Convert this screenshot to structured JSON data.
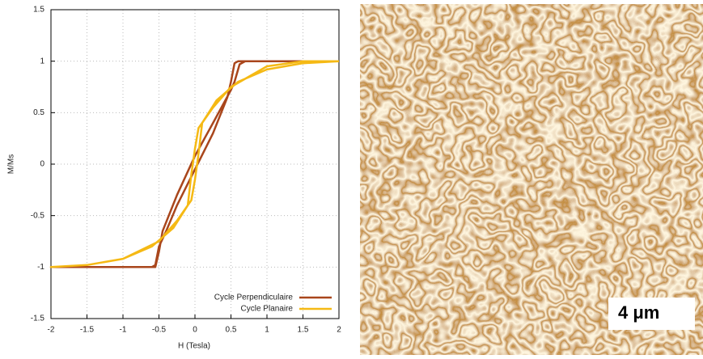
{
  "chart_data": {
    "type": "line",
    "xlabel": "H (Tesla)",
    "ylabel": "M/Ms",
    "xlim": [
      -2,
      2
    ],
    "ylim": [
      -1.5,
      1.5
    ],
    "xticks": [
      -2,
      -1.5,
      -1,
      -0.5,
      0,
      0.5,
      1,
      1.5,
      2
    ],
    "yticks": [
      1.5,
      1,
      0.5,
      0,
      -0.5,
      -1,
      -1.5
    ],
    "grid": true,
    "legend": "lower right",
    "series": [
      {
        "name": "Cycle Perpendiculaire",
        "color": "#a9461c",
        "x": [
          2,
          1.5,
          0.7,
          0.62,
          0.55,
          0.5,
          0.25,
          0,
          -0.25,
          -0.45,
          -0.5,
          -0.55,
          -1,
          -2,
          -0.6,
          -0.55,
          -0.5,
          -0.4,
          -0.25,
          0,
          0.25,
          0.45,
          0.5,
          0.55,
          0.6,
          2
        ],
        "values": [
          1,
          1,
          1,
          0.97,
          0.8,
          0.72,
          0.4,
          0.08,
          -0.3,
          -0.65,
          -0.85,
          -1,
          -1,
          -1,
          -1,
          -0.98,
          -0.8,
          -0.65,
          -0.4,
          -0.05,
          0.3,
          0.65,
          0.8,
          0.98,
          1,
          1
        ]
      },
      {
        "name": "Cycle Planaire",
        "color": "#f5b914",
        "x": [
          2,
          1.5,
          1,
          0.5,
          0.25,
          0.05,
          0,
          -0.05,
          -0.1,
          -0.3,
          -0.6,
          -1,
          -1.5,
          -2,
          -1.5,
          -1,
          -0.5,
          -0.25,
          -0.05,
          0,
          0.05,
          0.1,
          0.3,
          0.6,
          1,
          1.5,
          2
        ],
        "values": [
          1,
          1,
          0.95,
          0.75,
          0.55,
          0.35,
          0.15,
          -0.1,
          -0.4,
          -0.62,
          -0.8,
          -0.92,
          -0.98,
          -1,
          -0.98,
          -0.92,
          -0.75,
          -0.55,
          -0.35,
          -0.15,
          0.1,
          0.4,
          0.62,
          0.8,
          0.92,
          0.98,
          1
        ]
      }
    ]
  },
  "image": {
    "scale_label": "4 μm"
  }
}
